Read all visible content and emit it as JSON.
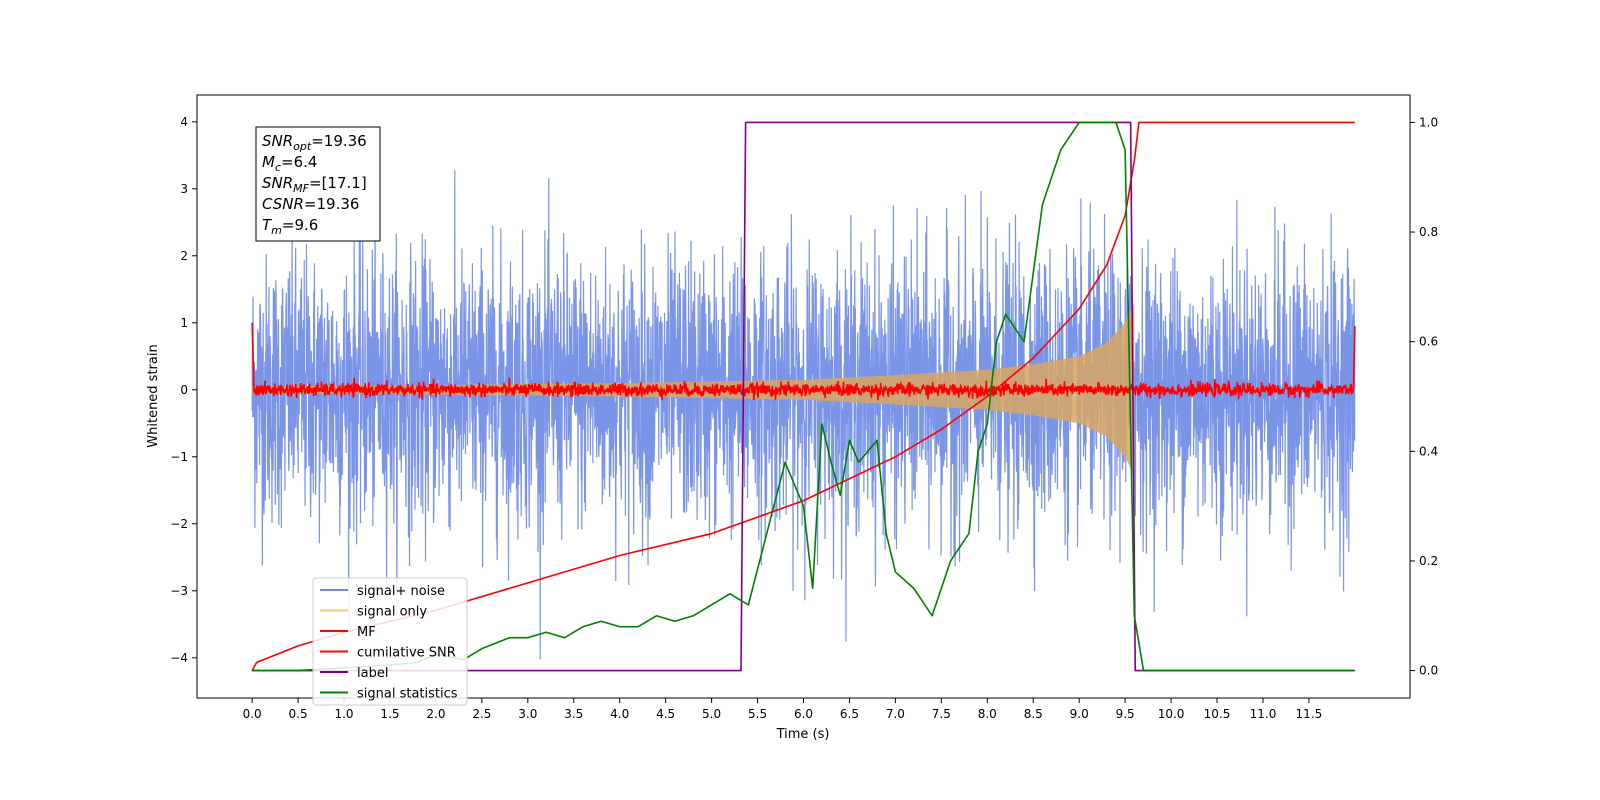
{
  "chart_data": {
    "type": "line",
    "title": "",
    "xlabel": "Time (s)",
    "ylabel": "Whitened strain",
    "xlim": [
      -0.6,
      12.6
    ],
    "ylim": [
      -4.6,
      4.4
    ],
    "ylim_right": [
      -0.05,
      1.05
    ],
    "x_ticks": [
      "0.0",
      "0.5",
      "1.0",
      "1.5",
      "2.0",
      "2.5",
      "3.0",
      "3.5",
      "4.0",
      "4.5",
      "5.0",
      "5.5",
      "6.0",
      "6.5",
      "7.0",
      "7.5",
      "8.0",
      "8.5",
      "9.0",
      "9.5",
      "10.0",
      "10.5",
      "11.0",
      "11.5"
    ],
    "y_ticks_left": [
      "4",
      "3",
      "2",
      "1",
      "0",
      "−1",
      "−2",
      "−3",
      "−4"
    ],
    "y_ticks_right": [
      "1.0",
      "0.8",
      "0.6",
      "0.4",
      "0.2",
      "0.0"
    ],
    "legend_position": "lower-left",
    "info_box": [
      {
        "sym": "SNR",
        "sub": "opt",
        "value": "=19.36"
      },
      {
        "sym": "M",
        "sub": "c",
        "value": "=6.4"
      },
      {
        "sym": "SNR",
        "sub": "MF",
        "value": "=[17.1]"
      },
      {
        "sym": "CSNR",
        "sub": "",
        "value": "=19.36"
      },
      {
        "sym": "T",
        "sub": "m",
        "value": "=9.6"
      }
    ],
    "series": [
      {
        "name": "signal+ noise",
        "color": "#6b88e6",
        "axis": "left",
        "noise_std": 1.0,
        "x_range": [
          0.0,
          12.0
        ]
      },
      {
        "name": "signal only",
        "color": "#f5c77d",
        "axis": "left",
        "envelope": {
          "x": [
            0.0,
            2.0,
            4.0,
            6.0,
            7.0,
            8.0,
            8.5,
            9.0,
            9.3,
            9.5,
            9.6
          ],
          "amplitude": [
            0.05,
            0.07,
            0.1,
            0.15,
            0.22,
            0.3,
            0.38,
            0.5,
            0.7,
            1.0,
            1.3
          ]
        }
      },
      {
        "name": "MF",
        "color": "#ff0000",
        "axis": "left",
        "baseline": 0.0,
        "noise_std": 0.05,
        "edge_values": [
          1.0,
          0.95
        ]
      },
      {
        "name": "cumilative SNR",
        "color": "#ff0000",
        "axis": "right",
        "x": [
          0.0,
          0.05,
          0.5,
          1.0,
          2.0,
          3.0,
          4.0,
          5.0,
          5.5,
          6.0,
          6.5,
          7.0,
          7.5,
          8.0,
          8.5,
          9.0,
          9.3,
          9.5,
          9.55,
          9.6,
          9.65,
          12.0
        ],
        "y": [
          0.0,
          0.015,
          0.045,
          0.07,
          0.11,
          0.16,
          0.21,
          0.25,
          0.28,
          0.31,
          0.35,
          0.39,
          0.44,
          0.5,
          0.57,
          0.66,
          0.74,
          0.83,
          0.88,
          0.93,
          1.0,
          1.0
        ]
      },
      {
        "name": "label",
        "color": "#800080",
        "axis": "right",
        "x": [
          0.0,
          5.32,
          5.37,
          9.56,
          9.61,
          12.0
        ],
        "y": [
          0.0,
          0.0,
          1.0,
          1.0,
          0.0,
          0.0
        ]
      },
      {
        "name": "signal statistics",
        "color": "#008000",
        "axis": "right",
        "x": [
          0.0,
          0.5,
          1.0,
          1.5,
          1.8,
          2.0,
          2.3,
          2.5,
          2.8,
          3.0,
          3.2,
          3.4,
          3.6,
          3.8,
          4.0,
          4.2,
          4.4,
          4.6,
          4.8,
          5.0,
          5.2,
          5.4,
          5.6,
          5.8,
          6.0,
          6.1,
          6.2,
          6.3,
          6.4,
          6.5,
          6.6,
          6.7,
          6.8,
          6.9,
          7.0,
          7.2,
          7.4,
          7.6,
          7.8,
          7.9,
          8.0,
          8.1,
          8.2,
          8.4,
          8.6,
          8.7,
          8.8,
          9.0,
          9.2,
          9.4,
          9.5,
          9.6,
          9.7,
          10.0,
          11.0,
          12.0
        ],
        "y": [
          0.0,
          0.0,
          0.005,
          0.01,
          0.015,
          0.03,
          0.02,
          0.04,
          0.06,
          0.06,
          0.07,
          0.06,
          0.08,
          0.09,
          0.08,
          0.08,
          0.1,
          0.09,
          0.1,
          0.12,
          0.14,
          0.12,
          0.25,
          0.38,
          0.3,
          0.15,
          0.45,
          0.38,
          0.32,
          0.42,
          0.38,
          0.4,
          0.42,
          0.25,
          0.18,
          0.15,
          0.1,
          0.2,
          0.25,
          0.4,
          0.45,
          0.6,
          0.65,
          0.6,
          0.85,
          0.9,
          0.95,
          1.0,
          1.0,
          1.0,
          0.95,
          0.1,
          0.0,
          0.0,
          0.0,
          0.0
        ]
      }
    ]
  }
}
